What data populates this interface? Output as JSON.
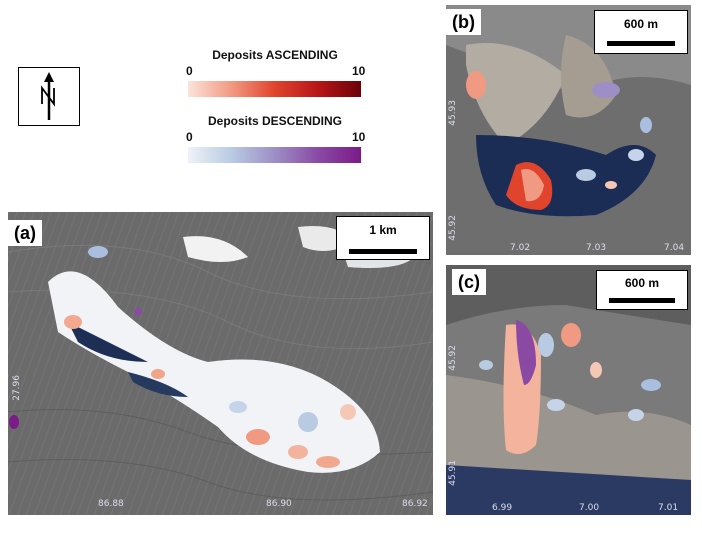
{
  "north_arrow": {
    "icon": "north-arrow-icon"
  },
  "legend": {
    "ascending": {
      "title": "Deposits ASCENDING",
      "min": "0",
      "max": "10",
      "colors": [
        "#fbe3da",
        "#e0442d",
        "#6b0207"
      ]
    },
    "descending": {
      "title": "Deposits DESCENDING",
      "min": "0",
      "max": "10",
      "colors": [
        "#eef3f8",
        "#9d8fc6",
        "#7a1b88"
      ]
    }
  },
  "panels": {
    "a": {
      "label": "(a)",
      "scale": "1 km",
      "x_ticks": [
        "86.88",
        "86.90",
        "86.92"
      ],
      "y_ticks": [
        "27.96"
      ]
    },
    "b": {
      "label": "(b)",
      "scale": "600 m",
      "x_ticks": [
        "7.02",
        "7.03",
        "7.04"
      ],
      "y_ticks": [
        "45.93",
        "45.92"
      ]
    },
    "c": {
      "label": "(c)",
      "scale": "600 m",
      "x_ticks": [
        "6.99",
        "7.00",
        "7.01"
      ],
      "y_ticks": [
        "45.92",
        "45.91"
      ]
    }
  }
}
